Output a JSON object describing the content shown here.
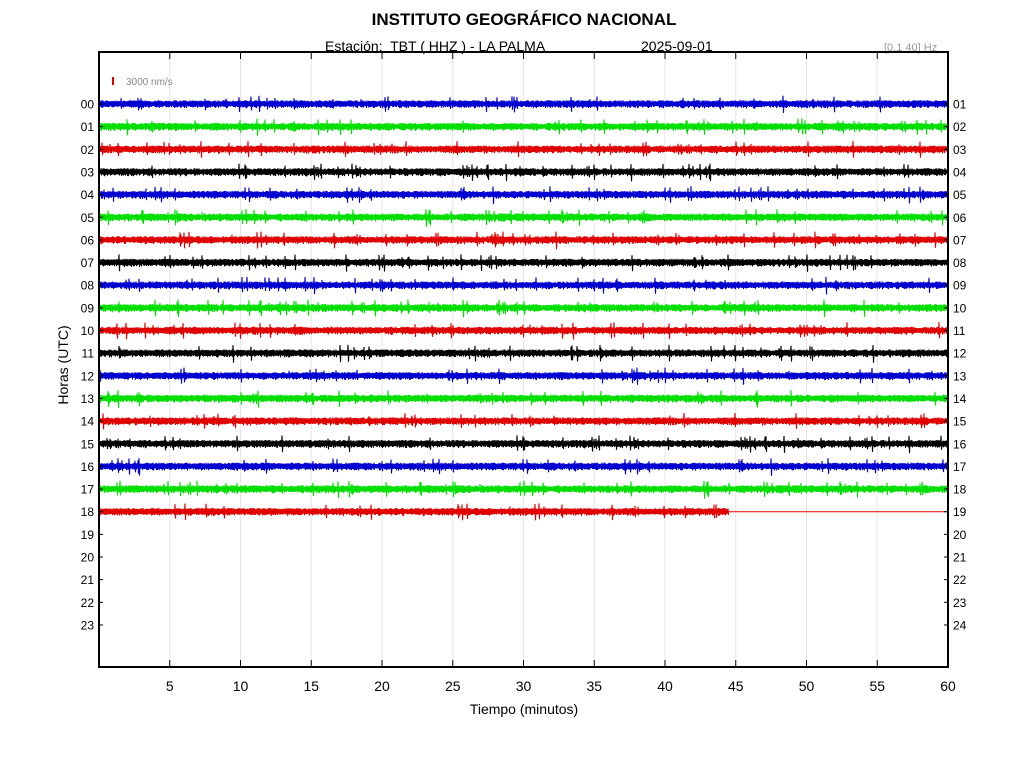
{
  "chart_data": {
    "type": "line",
    "title": "INSTITUTO GEOGRÁFICO NACIONAL",
    "station_label": "Estación:  TBT ( HHZ ) - LA PALMA",
    "date": "2025-09-01",
    "filter": "[0.1 40] Hz",
    "scale_label": "3000 nm/s",
    "xlabel": "Tiempo (minutos)",
    "ylabel": "Horas (UTC)",
    "xlim": [
      0,
      60
    ],
    "x_ticks": [
      "5",
      "10",
      "15",
      "20",
      "25",
      "30",
      "35",
      "40",
      "45",
      "50",
      "55",
      "60"
    ],
    "y_ticks_left": [
      "00",
      "01",
      "02",
      "03",
      "04",
      "05",
      "06",
      "07",
      "08",
      "09",
      "10",
      "11",
      "12",
      "13",
      "14",
      "15",
      "16",
      "17",
      "18",
      "19",
      "20",
      "21",
      "22",
      "23"
    ],
    "y_ticks_right": [
      "01",
      "02",
      "03",
      "04",
      "05",
      "06",
      "07",
      "08",
      "09",
      "10",
      "11",
      "12",
      "13",
      "14",
      "15",
      "16",
      "17",
      "18",
      "19",
      "20",
      "21",
      "22",
      "23",
      "24"
    ],
    "grid": "vertical",
    "colors": [
      "#0000d0",
      "#00e000",
      "#e00000",
      "#000000"
    ],
    "series": [
      {
        "hour": 0,
        "color": "#0000d0",
        "minutes_recorded": 60
      },
      {
        "hour": 1,
        "color": "#00e000",
        "minutes_recorded": 60
      },
      {
        "hour": 2,
        "color": "#e00000",
        "minutes_recorded": 60
      },
      {
        "hour": 3,
        "color": "#000000",
        "minutes_recorded": 60
      },
      {
        "hour": 4,
        "color": "#0000d0",
        "minutes_recorded": 60
      },
      {
        "hour": 5,
        "color": "#00e000",
        "minutes_recorded": 60
      },
      {
        "hour": 6,
        "color": "#e00000",
        "minutes_recorded": 60
      },
      {
        "hour": 7,
        "color": "#000000",
        "minutes_recorded": 60
      },
      {
        "hour": 8,
        "color": "#0000d0",
        "minutes_recorded": 60
      },
      {
        "hour": 9,
        "color": "#00e000",
        "minutes_recorded": 60
      },
      {
        "hour": 10,
        "color": "#e00000",
        "minutes_recorded": 60
      },
      {
        "hour": 11,
        "color": "#000000",
        "minutes_recorded": 60
      },
      {
        "hour": 12,
        "color": "#0000d0",
        "minutes_recorded": 60
      },
      {
        "hour": 13,
        "color": "#00e000",
        "minutes_recorded": 60
      },
      {
        "hour": 14,
        "color": "#e00000",
        "minutes_recorded": 60
      },
      {
        "hour": 15,
        "color": "#000000",
        "minutes_recorded": 60
      },
      {
        "hour": 16,
        "color": "#0000d0",
        "minutes_recorded": 60
      },
      {
        "hour": 17,
        "color": "#00e000",
        "minutes_recorded": 60
      },
      {
        "hour": 18,
        "color": "#e00000",
        "minutes_recorded": 44.5
      }
    ]
  }
}
